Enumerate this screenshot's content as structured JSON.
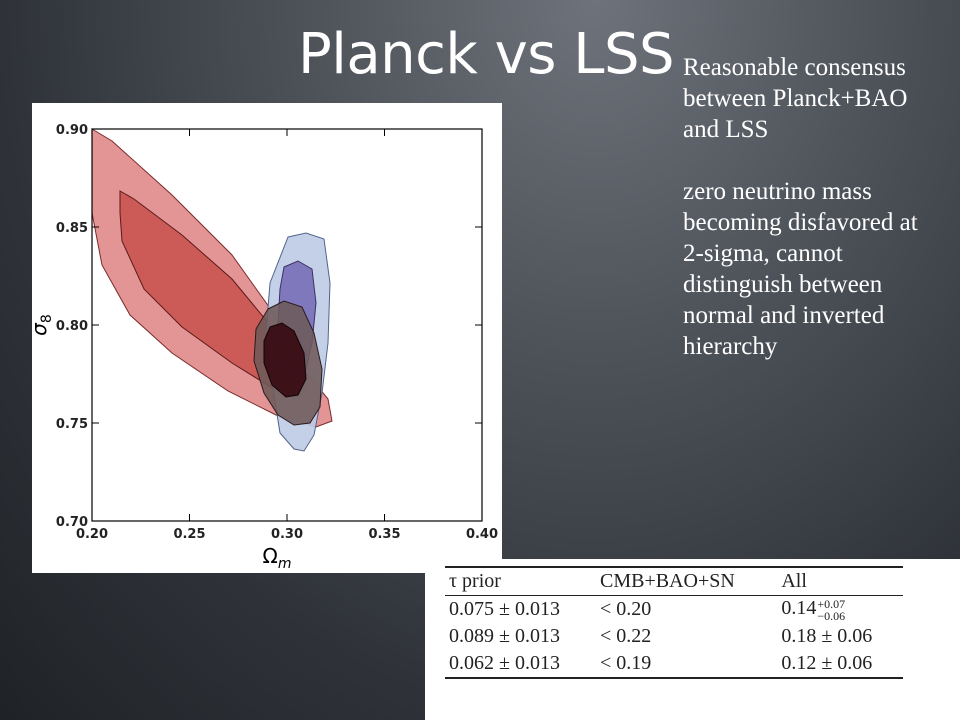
{
  "slide": {
    "title": "Planck vs LSS",
    "notes": [
      "Reasonable consensus between Planck+BAO and LSS",
      "zero neutrino mass becoming disfavored at 2-sigma, cannot distinguish between normal and inverted hierarchy"
    ]
  },
  "plot": {
    "xlabel": "Ω",
    "xlabel_sub": "m",
    "ylabel": "σ",
    "ylabel_sub": "8",
    "xlim": [
      0.2,
      0.4
    ],
    "ylim": [
      0.7,
      0.9
    ],
    "xticks": [
      "0.20",
      "0.25",
      "0.30",
      "0.35",
      "0.40"
    ],
    "yticks": [
      "0.70",
      "0.75",
      "0.80",
      "0.85",
      "0.90"
    ],
    "colors": {
      "red_outer": "#e08a8a",
      "red_inner": "#c9534f",
      "blue_outer": "#bccbe6",
      "blue_inner": "#7a70b8",
      "dark_outer": "#6e5a5a",
      "dark_inner": "#3a0d14"
    }
  },
  "table": {
    "headers": [
      "τ prior",
      "CMB+BAO+SN",
      "All"
    ],
    "rows": [
      {
        "prior": "0.075 ± 0.013",
        "cmb": "< 0.20",
        "all": "0.14",
        "all_sup": "+0.07",
        "all_sub": "−0.06"
      },
      {
        "prior": "0.089 ± 0.013",
        "cmb": "< 0.22",
        "all": "0.18 ± 0.06"
      },
      {
        "prior": "0.062 ± 0.013",
        "cmb": "< 0.19",
        "all": "0.12 ± 0.06"
      }
    ]
  }
}
